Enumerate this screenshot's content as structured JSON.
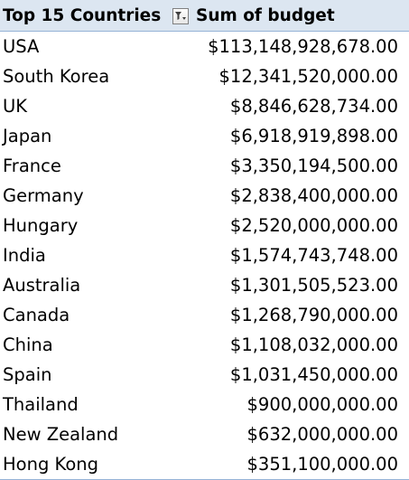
{
  "header": {
    "row_label": "Top 15 Countries",
    "value_label": "Sum of budget",
    "filter_icon": "filter-dropdown-icon"
  },
  "rows": [
    {
      "country": "USA",
      "budget": "$113,148,928,678.00"
    },
    {
      "country": "South Korea",
      "budget": "$12,341,520,000.00"
    },
    {
      "country": "UK",
      "budget": "$8,846,628,734.00"
    },
    {
      "country": "Japan",
      "budget": "$6,918,919,898.00"
    },
    {
      "country": "France",
      "budget": "$3,350,194,500.00"
    },
    {
      "country": "Germany",
      "budget": "$2,838,400,000.00"
    },
    {
      "country": "Hungary",
      "budget": "$2,520,000,000.00"
    },
    {
      "country": "India",
      "budget": "$1,574,743,748.00"
    },
    {
      "country": "Australia",
      "budget": "$1,301,505,523.00"
    },
    {
      "country": "Canada",
      "budget": "$1,268,790,000.00"
    },
    {
      "country": "China",
      "budget": "$1,108,032,000.00"
    },
    {
      "country": "Spain",
      "budget": "$1,031,450,000.00"
    },
    {
      "country": "Thailand",
      "budget": "$900,000,000.00"
    },
    {
      "country": "New Zealand",
      "budget": "$632,000,000.00"
    },
    {
      "country": "Hong Kong",
      "budget": "$351,100,000.00"
    }
  ],
  "colors": {
    "header_background": "#dce6f1",
    "header_border": "#95b3d7"
  }
}
